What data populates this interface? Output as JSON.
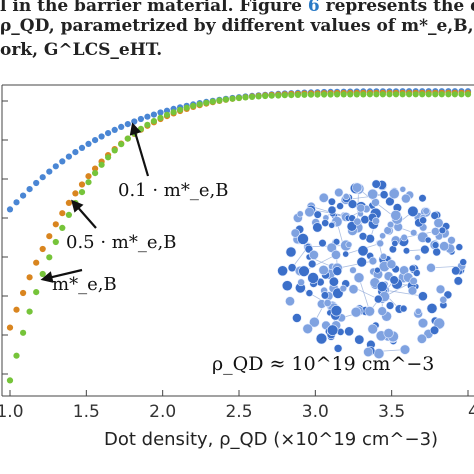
{
  "caption": {
    "line1_a": "l in the barrier material. Figure ",
    "line1_ref": "6",
    "line1_b": " represents the depende",
    "line2": "ρ_QD, parametrized by different values of m*_e,B, in the particu",
    "line3": "ork, G^LCS_eHT."
  },
  "chart_data": {
    "type": "scatter",
    "title": "",
    "xlabel": "Dot density, ρ_QD (×10^19 cm^−3)",
    "ylabel": "",
    "xlim": [
      1.0,
      4.0
    ],
    "x_ticks": [
      "1.0",
      "1.5",
      "2.0",
      "2.5",
      "3.0",
      "3.5",
      "4"
    ],
    "series": [
      {
        "name": "0.1 · m*_e,B",
        "color": "#4a86d4",
        "x_start": 1.0,
        "x_end": 4.0,
        "n_points": 71,
        "y_start": 0.6,
        "y_end": 0.98,
        "curvature": 0.55
      },
      {
        "name": "0.5 · m*_e,B",
        "color": "#d9851f",
        "x_start": 1.0,
        "x_end": 4.0,
        "n_points": 71,
        "y_start": 0.22,
        "y_end": 0.975,
        "curvature": 0.75
      },
      {
        "name": "m*_e,B",
        "color": "#76c43a",
        "x_start": 1.0,
        "x_end": 4.0,
        "n_points": 71,
        "y_start": 0.05,
        "y_end": 0.97,
        "curvature": 0.88
      }
    ],
    "annotations": [
      {
        "text": "0.1 · m*_e,B",
        "series": 0,
        "x": 1.8
      },
      {
        "text": "0.5 · m*_e,B",
        "series": 1,
        "x": 1.4
      },
      {
        "text": "m*_e,B",
        "series": 2,
        "x": 1.2
      }
    ],
    "inset_label": "ρ_QD ≈ 10^19 cm^−3"
  }
}
